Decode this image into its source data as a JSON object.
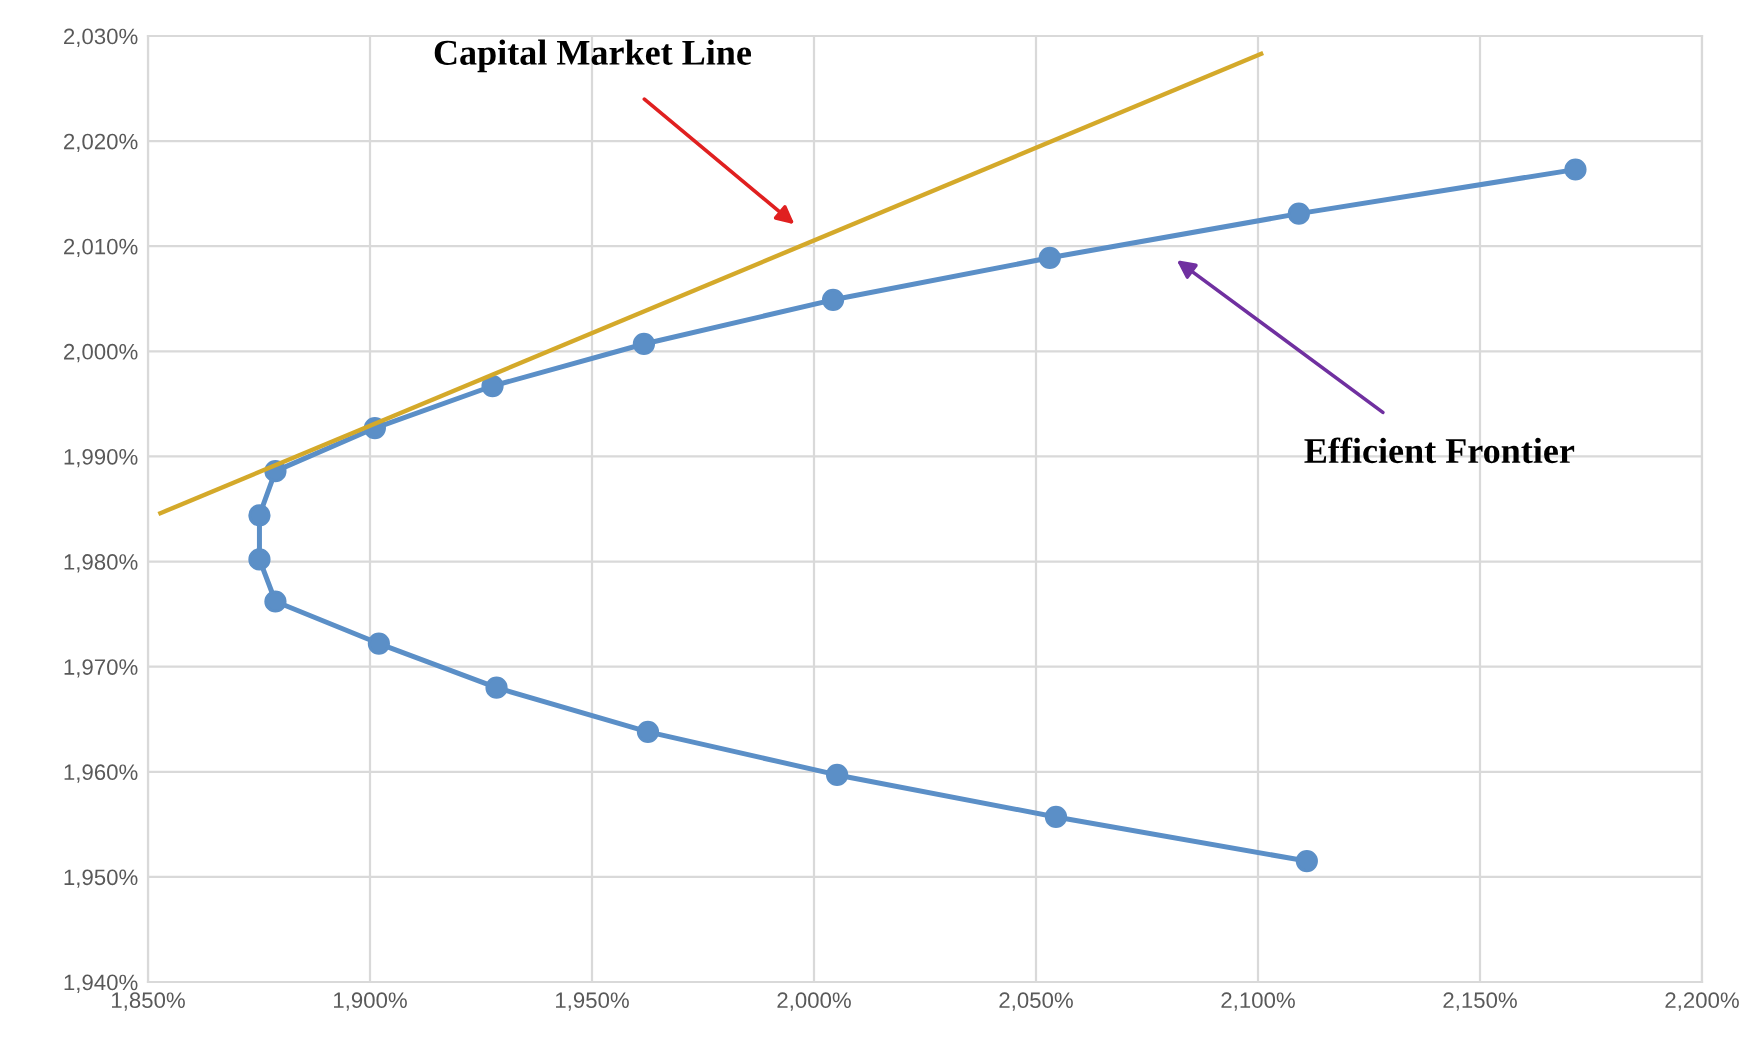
{
  "chart_data": {
    "type": "line",
    "series": [
      {
        "type": "line",
        "color": "#5b8fc7",
        "marker": "circle",
        "x": [
          2111.0,
          2054.5,
          2005.2,
          1962.6,
          1928.5,
          1902.0,
          1878.7,
          1875.1,
          1875.1,
          1878.7,
          1901.1,
          1927.6,
          1961.7,
          2004.3,
          2053.1,
          2109.2,
          2171.5
        ],
        "values": [
          1951.5,
          1955.7,
          1959.7,
          1963.8,
          1968.0,
          1972.2,
          1976.2,
          1980.2,
          1984.4,
          1988.6,
          1992.7,
          1996.7,
          2000.7,
          2004.9,
          2008.9,
          2013.1,
          2017.3
        ]
      },
      {
        "type": "line",
        "color": "#d4a92a",
        "marker": "none",
        "x": [
          1852.8,
          2100.7
        ],
        "values": [
          1984.6,
          2028.3
        ]
      }
    ],
    "annotations": [
      "Capital Market Line",
      "Efficient Frontier"
    ],
    "xlim": [
      1850,
      2200
    ],
    "xticks": [
      {
        "value": 1850,
        "label": "1,850%"
      },
      {
        "value": 1900,
        "label": "1,900%"
      },
      {
        "value": 1950,
        "label": "1,950%"
      },
      {
        "value": 2000,
        "label": "2,000%"
      },
      {
        "value": 2050,
        "label": "2,050%"
      },
      {
        "value": 2100,
        "label": "2,100%"
      },
      {
        "value": 2150,
        "label": "2,150%"
      },
      {
        "value": 2200,
        "label": "2,200%"
      }
    ],
    "ylim": [
      1940,
      2030
    ],
    "yticks": [
      {
        "value": 1940,
        "label": "1,940%"
      },
      {
        "value": 1950,
        "label": "1,950%"
      },
      {
        "value": 1960,
        "label": "1,960%"
      },
      {
        "value": 1970,
        "label": "1,970%"
      },
      {
        "value": 1980,
        "label": "1,980%"
      },
      {
        "value": 1990,
        "label": "1,990%"
      },
      {
        "value": 2000,
        "label": "2,000%"
      },
      {
        "value": 2010,
        "label": "2,010%"
      },
      {
        "value": 2020,
        "label": "2,020%"
      },
      {
        "value": 2030,
        "label": "2,030%"
      }
    ],
    "grid": true
  }
}
